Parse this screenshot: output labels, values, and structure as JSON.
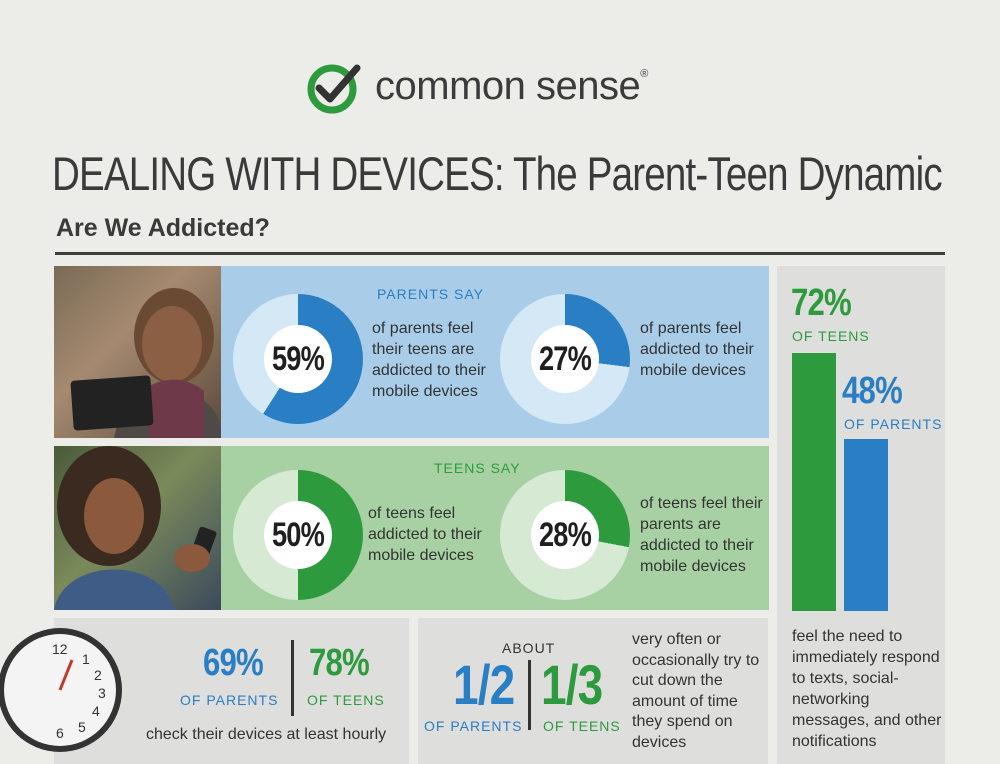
{
  "header": {
    "brand": "common sense",
    "registered_mark": "®",
    "title": "DEALING WITH DEVICES: The Parent-Teen Dynamic",
    "subtitle": "Are We Addicted?"
  },
  "colors": {
    "blue": "#2a7ec4",
    "green": "#2e9a3e",
    "blue_panel": "#a9cde9",
    "green_panel": "#a8d1a3"
  },
  "parents_say": {
    "label": "PARENTS SAY",
    "stats": [
      {
        "value": 59,
        "label": "59%",
        "text": "of parents feel their teens are addicted to their mobile devices"
      },
      {
        "value": 27,
        "label": "27%",
        "text": "of parents feel addicted to their mobile devices"
      }
    ]
  },
  "teens_say": {
    "label": "TEENS SAY",
    "stats": [
      {
        "value": 50,
        "label": "50%",
        "text": "of teens feel addicted to their mobile devices"
      },
      {
        "value": 28,
        "label": "28%",
        "text": "of teens feel their parents are addicted to their mobile devices"
      }
    ]
  },
  "notifications": {
    "teens_value": 72,
    "teens_pct": "72%",
    "teens_label": "OF TEENS",
    "parents_value": 48,
    "parents_pct": "48%",
    "parents_label": "OF PARENTS",
    "text": "feel the need to immediately respond to texts, social-networking messages, and other notifications"
  },
  "hourly": {
    "parents_pct": "69%",
    "parents_label": "OF PARENTS",
    "teens_pct": "78%",
    "teens_label": "OF TEENS",
    "text": "check their devices at least hourly",
    "clock_numbers": [
      "12",
      "1",
      "2",
      "3",
      "4",
      "5",
      "6"
    ]
  },
  "cut_down": {
    "about": "ABOUT",
    "parents_fraction": "1/2",
    "parents_label": "OF PARENTS",
    "teens_fraction": "1/3",
    "teens_label": "OF TEENS",
    "text": "very often or occasionally try to cut down the amount of time they spend on devices"
  }
}
